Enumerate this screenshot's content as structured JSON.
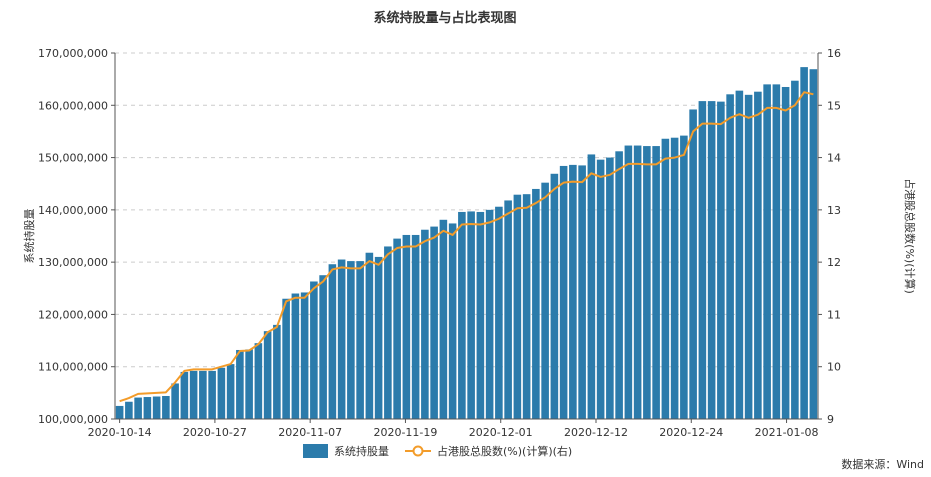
{
  "source": "数据来源：Wind",
  "chart_data": {
    "type": "bar",
    "title": "系统持股量与占比表现图",
    "ylabel": "系统持股量",
    "y2label": "占港股总股数(%)(计算)",
    "ylim": [
      100000000,
      170000000
    ],
    "y2lim": [
      9,
      16
    ],
    "y_ticks": [
      "100,000,000",
      "110,000,000",
      "120,000,000",
      "130,000,000",
      "140,000,000",
      "150,000,000",
      "160,000,000",
      "170,000,000"
    ],
    "y2_ticks": [
      "9",
      "10",
      "11",
      "12",
      "13",
      "14",
      "15",
      "16"
    ],
    "x_tick_labels": [
      "2020-10-14",
      "2020-10-27",
      "2020-11-07",
      "2020-11-19",
      "2020-12-01",
      "2020-12-12",
      "2020-12-24",
      "2021-01-08"
    ],
    "grid": true,
    "legend_position": "bottom",
    "series": [
      {
        "name": "系统持股量",
        "type": "bar",
        "axis": "left",
        "color": "#2b7bab",
        "values": [
          102500000,
          103300000,
          104100000,
          104200000,
          104300000,
          104400000,
          106800000,
          109000000,
          109200000,
          109200000,
          109200000,
          109800000,
          110500000,
          113200000,
          113300000,
          114500000,
          116800000,
          118000000,
          123000000,
          124000000,
          124200000,
          126300000,
          127500000,
          129600000,
          130500000,
          130200000,
          130200000,
          131800000,
          131000000,
          133000000,
          134500000,
          135200000,
          135200000,
          136200000,
          136800000,
          138100000,
          137400000,
          139600000,
          139700000,
          139600000,
          140000000,
          140600000,
          141800000,
          142900000,
          143000000,
          144000000,
          145200000,
          146900000,
          148400000,
          148600000,
          148500000,
          150600000,
          149600000,
          150000000,
          151200000,
          152300000,
          152300000,
          152200000,
          152200000,
          153600000,
          153800000,
          154200000,
          159200000,
          160800000,
          160800000,
          160700000,
          162100000,
          162800000,
          162000000,
          162600000,
          164000000,
          164000000,
          163500000,
          164700000,
          167300000,
          166900000
        ]
      },
      {
        "name": "占港股总股数(%)(计算)(右)",
        "type": "line",
        "axis": "right",
        "color": "#f39c2a",
        "values": [
          9.34,
          9.4,
          9.48,
          9.49,
          9.5,
          9.51,
          9.7,
          9.92,
          9.95,
          9.95,
          9.95,
          10.0,
          10.05,
          10.3,
          10.31,
          10.43,
          10.66,
          10.76,
          11.25,
          11.32,
          11.32,
          11.5,
          11.63,
          11.86,
          11.9,
          11.88,
          11.88,
          12.02,
          11.95,
          12.15,
          12.27,
          12.3,
          12.3,
          12.4,
          12.47,
          12.6,
          12.52,
          12.72,
          12.73,
          12.72,
          12.76,
          12.83,
          12.93,
          13.03,
          13.04,
          13.13,
          13.24,
          13.4,
          13.52,
          13.54,
          13.53,
          13.7,
          13.63,
          13.67,
          13.78,
          13.88,
          13.88,
          13.87,
          13.87,
          13.98,
          14.0,
          14.05,
          14.5,
          14.65,
          14.65,
          14.64,
          14.76,
          14.83,
          14.76,
          14.82,
          14.95,
          14.95,
          14.9,
          15.0,
          15.25,
          15.21
        ]
      }
    ]
  }
}
